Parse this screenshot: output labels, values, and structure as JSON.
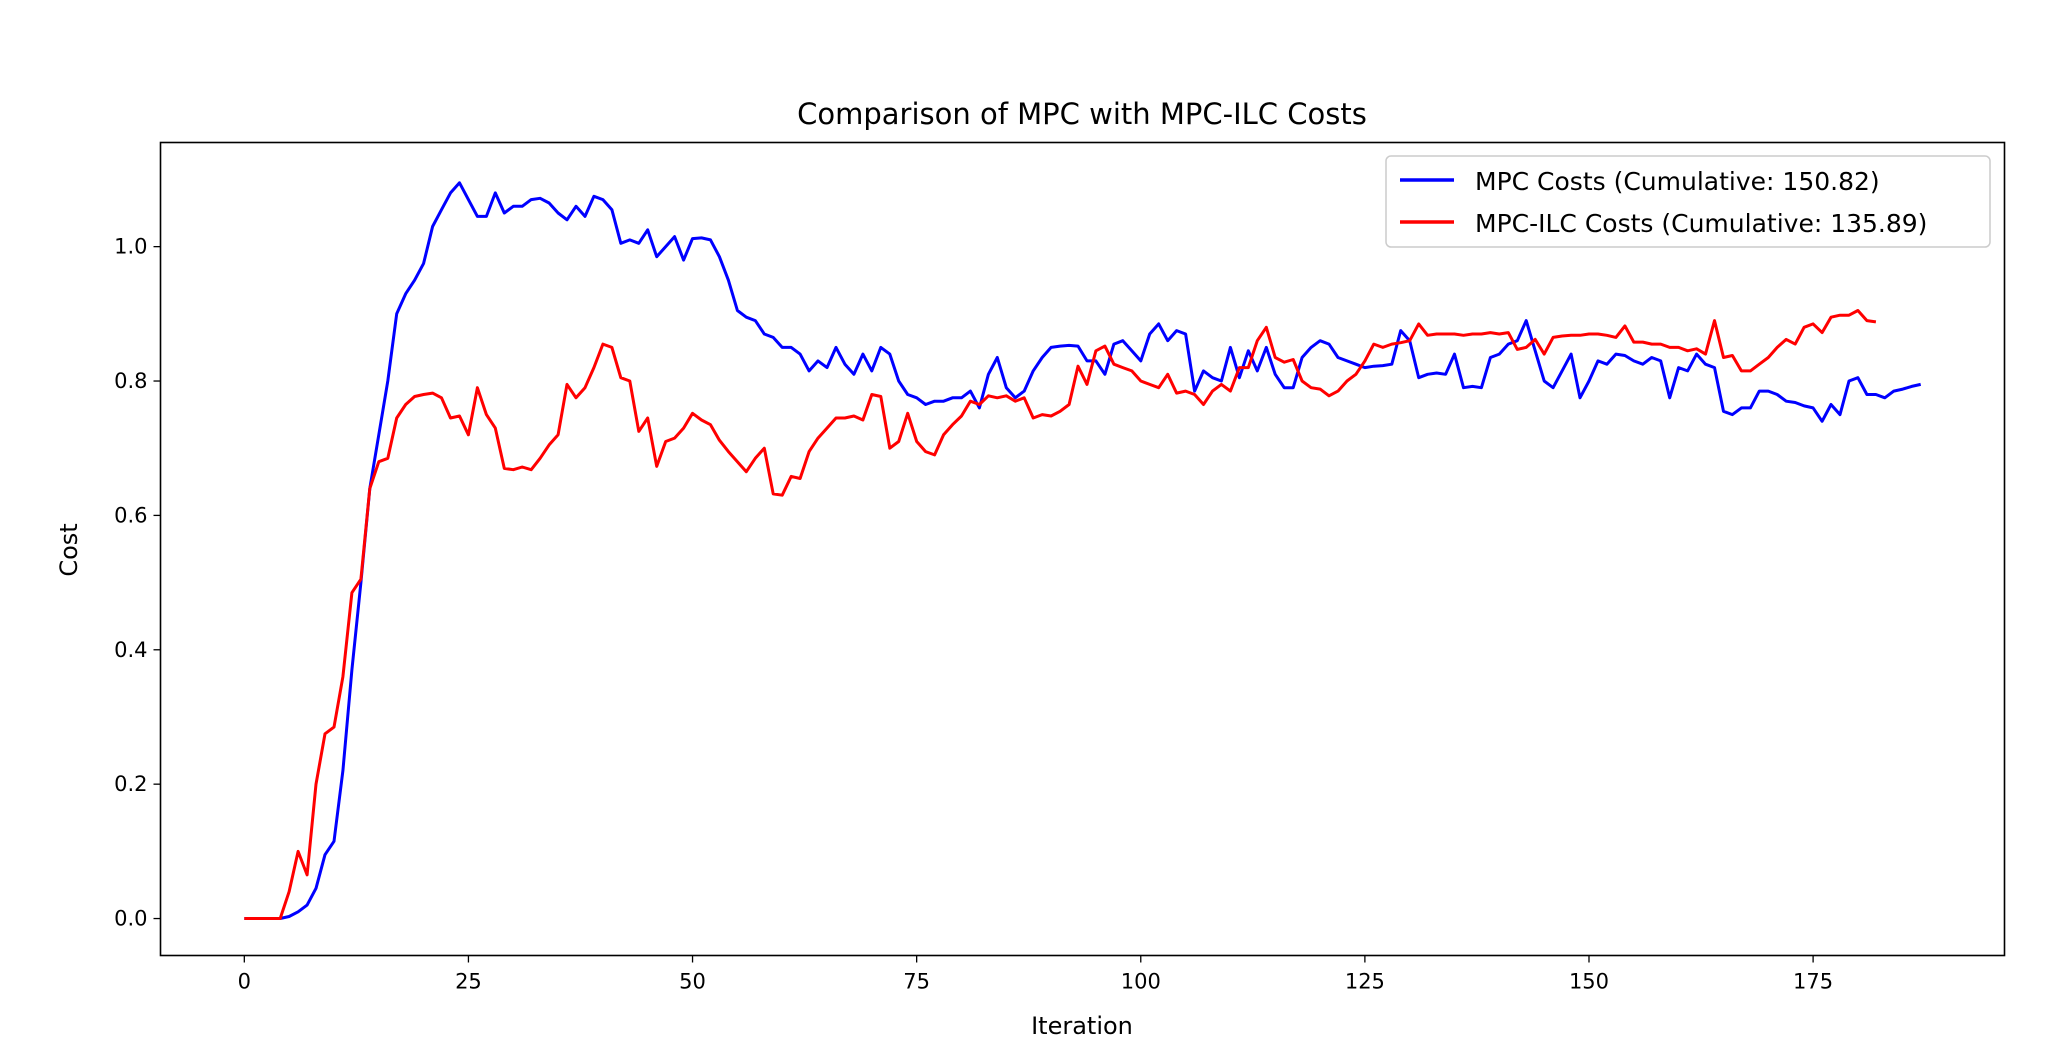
{
  "chart_data": {
    "type": "line",
    "title": "Comparison of MPC with MPC-ILC Costs",
    "xlabel": "Iteration",
    "ylabel": "Cost",
    "xlim": [
      -9.35,
      196.35
    ],
    "ylim": [
      -0.055,
      1.155
    ],
    "xticks": [
      0,
      25,
      50,
      75,
      100,
      125,
      150,
      175
    ],
    "yticks": [
      0.0,
      0.2,
      0.4,
      0.6,
      0.8,
      1.0
    ],
    "xtick_labels": [
      "0",
      "25",
      "50",
      "75",
      "100",
      "125",
      "150",
      "175"
    ],
    "ytick_labels": [
      "0.0",
      "0.2",
      "0.4",
      "0.6",
      "0.8",
      "1.0"
    ],
    "grid": false,
    "legend_position": "upper-right",
    "series": [
      {
        "name": "MPC Costs (Cumulative: 150.82)",
        "color": "#0000ff",
        "values": [
          0,
          0,
          0,
          0,
          0,
          0.003,
          0.01,
          0.02,
          0.045,
          0.095,
          0.115,
          0.22,
          0.37,
          0.5,
          0.64,
          0.72,
          0.8,
          0.9,
          0.93,
          0.95,
          0.975,
          1.03,
          1.055,
          1.08,
          1.095,
          1.07,
          1.045,
          1.045,
          1.08,
          1.05,
          1.06,
          1.06,
          1.07,
          1.072,
          1.065,
          1.05,
          1.04,
          1.06,
          1.045,
          1.075,
          1.07,
          1.055,
          1.005,
          1.01,
          1.005,
          1.025,
          0.985,
          1.0,
          1.015,
          0.98,
          1.012,
          1.013,
          1.01,
          0.985,
          0.95,
          0.905,
          0.895,
          0.89,
          0.87,
          0.865,
          0.85,
          0.85,
          0.84,
          0.815,
          0.83,
          0.82,
          0.85,
          0.825,
          0.81,
          0.84,
          0.815,
          0.85,
          0.84,
          0.8,
          0.78,
          0.775,
          0.765,
          0.77,
          0.77,
          0.775,
          0.775,
          0.785,
          0.76,
          0.81,
          0.835,
          0.79,
          0.775,
          0.785,
          0.815,
          0.835,
          0.85,
          0.852,
          0.853,
          0.852,
          0.83,
          0.83,
          0.81,
          0.855,
          0.86,
          0.845,
          0.83,
          0.87,
          0.885,
          0.86,
          0.875,
          0.87,
          0.785,
          0.815,
          0.805,
          0.8,
          0.85,
          0.805,
          0.845,
          0.815,
          0.85,
          0.81,
          0.79,
          0.79,
          0.835,
          0.85,
          0.86,
          0.855,
          0.835,
          0.83,
          0.825,
          0.82,
          0.822,
          0.823,
          0.825,
          0.875,
          0.86,
          0.805,
          0.81,
          0.812,
          0.81,
          0.84,
          0.79,
          0.792,
          0.79,
          0.835,
          0.84,
          0.855,
          0.86,
          0.89,
          0.845,
          0.8,
          0.79,
          0.815,
          0.84,
          0.775,
          0.8,
          0.83,
          0.825,
          0.84,
          0.838,
          0.83,
          0.825,
          0.835,
          0.83,
          0.775,
          0.82,
          0.815,
          0.84,
          0.825,
          0.82,
          0.755,
          0.75,
          0.76,
          0.76,
          0.785,
          0.785,
          0.78,
          0.77,
          0.768,
          0.763,
          0.76,
          0.74,
          0.765,
          0.75,
          0.8,
          0.805,
          0.78,
          0.78,
          0.775,
          0.785,
          0.788,
          0.792,
          0.795
        ]
      },
      {
        "name": "MPC-ILC Costs (Cumulative: 135.89)",
        "color": "#ff0000",
        "values": [
          0,
          0,
          0,
          0,
          0,
          0.04,
          0.1,
          0.065,
          0.2,
          0.275,
          0.285,
          0.36,
          0.485,
          0.505,
          0.64,
          0.68,
          0.685,
          0.745,
          0.765,
          0.777,
          0.78,
          0.782,
          0.775,
          0.745,
          0.748,
          0.72,
          0.79,
          0.75,
          0.73,
          0.67,
          0.668,
          0.672,
          0.668,
          0.685,
          0.705,
          0.72,
          0.795,
          0.775,
          0.79,
          0.82,
          0.855,
          0.85,
          0.805,
          0.8,
          0.725,
          0.745,
          0.673,
          0.71,
          0.715,
          0.73,
          0.752,
          0.742,
          0.735,
          0.712,
          0.695,
          0.68,
          0.665,
          0.685,
          0.7,
          0.632,
          0.63,
          0.658,
          0.655,
          0.695,
          0.715,
          0.73,
          0.745,
          0.745,
          0.748,
          0.742,
          0.78,
          0.777,
          0.7,
          0.71,
          0.752,
          0.71,
          0.695,
          0.69,
          0.72,
          0.735,
          0.748,
          0.77,
          0.765,
          0.778,
          0.775,
          0.778,
          0.77,
          0.775,
          0.745,
          0.75,
          0.748,
          0.755,
          0.765,
          0.822,
          0.795,
          0.845,
          0.852,
          0.825,
          0.82,
          0.815,
          0.8,
          0.795,
          0.79,
          0.81,
          0.782,
          0.785,
          0.78,
          0.765,
          0.785,
          0.795,
          0.785,
          0.82,
          0.82,
          0.86,
          0.88,
          0.835,
          0.828,
          0.832,
          0.8,
          0.79,
          0.788,
          0.778,
          0.785,
          0.8,
          0.81,
          0.83,
          0.855,
          0.85,
          0.855,
          0.857,
          0.86,
          0.885,
          0.868,
          0.87,
          0.87,
          0.87,
          0.868,
          0.87,
          0.87,
          0.872,
          0.87,
          0.872,
          0.847,
          0.85,
          0.862,
          0.84,
          0.865,
          0.867,
          0.868,
          0.868,
          0.87,
          0.87,
          0.868,
          0.865,
          0.882,
          0.858,
          0.858,
          0.855,
          0.855,
          0.85,
          0.85,
          0.845,
          0.848,
          0.84,
          0.89,
          0.835,
          0.838,
          0.815,
          0.815,
          0.825,
          0.835,
          0.85,
          0.862,
          0.855,
          0.88,
          0.885,
          0.872,
          0.895,
          0.898,
          0.898,
          0.905,
          0.89,
          0.888
        ]
      }
    ]
  }
}
